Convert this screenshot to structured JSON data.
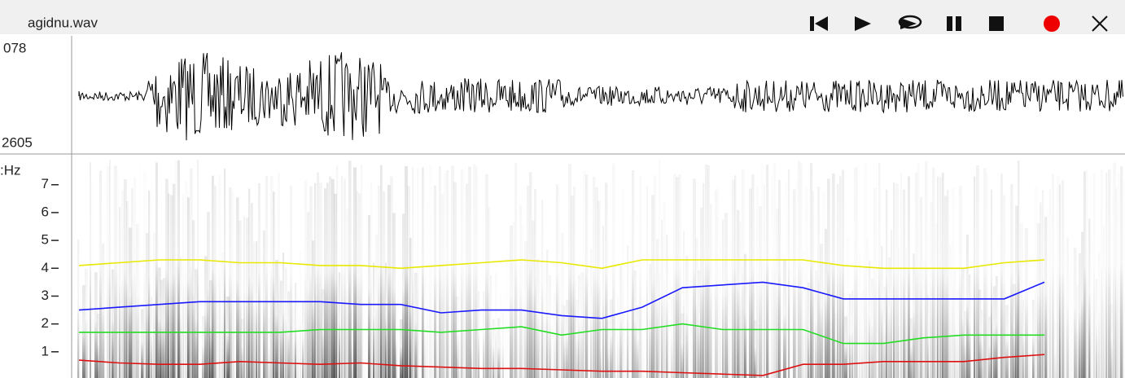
{
  "title": "agidnu.wav",
  "waveform": {
    "max_label": "078",
    "min_label": "2605"
  },
  "spectrogram": {
    "unit_label": ":Hz",
    "ylim": [
      0,
      7.9
    ],
    "yticks": [
      1,
      2,
      3,
      4,
      5,
      6,
      7
    ],
    "formants": [
      {
        "color": "#e8e800",
        "values": [
          4.1,
          4.2,
          4.3,
          4.3,
          4.2,
          4.2,
          4.1,
          4.1,
          4.0,
          4.1,
          4.2,
          4.3,
          4.2,
          4.0,
          4.3,
          4.3,
          4.3,
          4.3,
          4.3,
          4.1,
          4.0,
          4.0,
          4.0,
          4.2,
          4.3
        ]
      },
      {
        "color": "#1a1aff",
        "values": [
          2.5,
          2.6,
          2.7,
          2.8,
          2.8,
          2.8,
          2.8,
          2.7,
          2.7,
          2.4,
          2.5,
          2.5,
          2.3,
          2.2,
          2.6,
          3.3,
          3.4,
          3.5,
          3.3,
          2.9,
          2.9,
          2.9,
          2.9,
          2.9,
          3.5
        ]
      },
      {
        "color": "#22dd22",
        "values": [
          1.7,
          1.7,
          1.7,
          1.7,
          1.7,
          1.7,
          1.8,
          1.8,
          1.8,
          1.7,
          1.8,
          1.9,
          1.6,
          1.8,
          1.8,
          2.0,
          1.8,
          1.8,
          1.8,
          1.3,
          1.3,
          1.5,
          1.6,
          1.6,
          1.6
        ]
      },
      {
        "color": "#dd1111",
        "values": [
          0.7,
          0.6,
          0.55,
          0.55,
          0.65,
          0.6,
          0.55,
          0.6,
          0.5,
          0.45,
          0.4,
          0.4,
          0.35,
          0.3,
          0.3,
          0.25,
          0.2,
          0.15,
          0.55,
          0.55,
          0.65,
          0.65,
          0.65,
          0.8,
          0.9
        ]
      }
    ]
  }
}
